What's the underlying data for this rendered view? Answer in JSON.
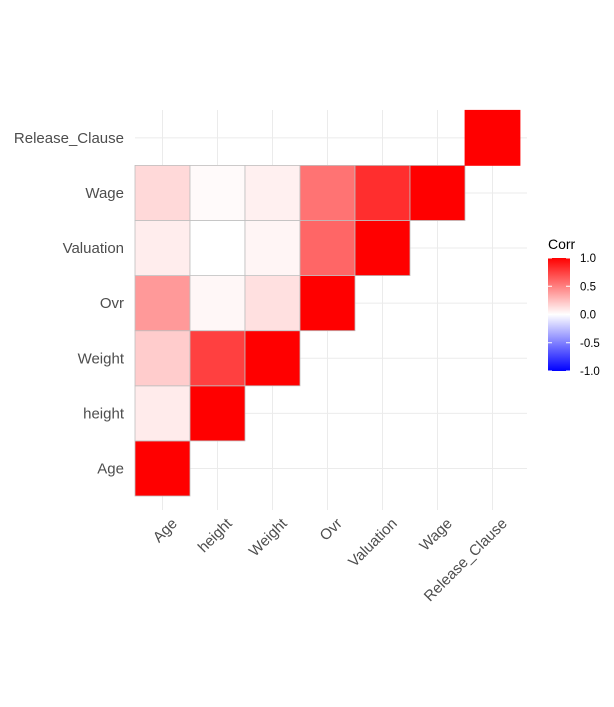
{
  "chart_data": {
    "type": "heatmap",
    "title": "",
    "xlabel": "",
    "ylabel": "",
    "variables": [
      "Age",
      "height",
      "Weight",
      "Ovr",
      "Valuation",
      "Wage",
      "Release_Clause"
    ],
    "x_labels": [
      "Age",
      "height",
      "Weight",
      "Ovr",
      "Valuation",
      "Wage",
      "Release_Clause"
    ],
    "y_labels": [
      "Age",
      "height",
      "Weight",
      "Ovr",
      "Valuation",
      "Wage",
      "Release_Clause"
    ],
    "triangle": "lower (including diagonal); Release_Clause shows only its diagonal",
    "cells": [
      {
        "x": "Age",
        "y": "Age",
        "value": 1.0
      },
      {
        "x": "Age",
        "y": "height",
        "value": 0.08
      },
      {
        "x": "Age",
        "y": "Weight",
        "value": 0.2
      },
      {
        "x": "Age",
        "y": "Ovr",
        "value": 0.4
      },
      {
        "x": "Age",
        "y": "Valuation",
        "value": 0.07
      },
      {
        "x": "Age",
        "y": "Wage",
        "value": 0.15
      },
      {
        "x": "height",
        "y": "height",
        "value": 1.0
      },
      {
        "x": "height",
        "y": "Weight",
        "value": 0.75
      },
      {
        "x": "height",
        "y": "Ovr",
        "value": 0.03
      },
      {
        "x": "height",
        "y": "Valuation",
        "value": 0.0
      },
      {
        "x": "height",
        "y": "Wage",
        "value": 0.02
      },
      {
        "x": "Weight",
        "y": "Weight",
        "value": 1.0
      },
      {
        "x": "Weight",
        "y": "Ovr",
        "value": 0.12
      },
      {
        "x": "Weight",
        "y": "Valuation",
        "value": 0.04
      },
      {
        "x": "Weight",
        "y": "Wage",
        "value": 0.06
      },
      {
        "x": "Ovr",
        "y": "Ovr",
        "value": 1.0
      },
      {
        "x": "Ovr",
        "y": "Valuation",
        "value": 0.6
      },
      {
        "x": "Ovr",
        "y": "Wage",
        "value": 0.55
      },
      {
        "x": "Valuation",
        "y": "Valuation",
        "value": 1.0
      },
      {
        "x": "Valuation",
        "y": "Wage",
        "value": 0.82
      },
      {
        "x": "Wage",
        "y": "Wage",
        "value": 1.0
      },
      {
        "x": "Release_Clause",
        "y": "Release_Clause",
        "value": 1.0
      }
    ],
    "legend": {
      "title": "Corr",
      "ticks": [
        "1.0",
        "0.5",
        "0.0",
        "-0.5",
        "-1.0"
      ],
      "tick_values": [
        1.0,
        0.5,
        0.0,
        -0.5,
        -1.0
      ],
      "range": [
        -1.0,
        1.0
      ],
      "colors": {
        "low": "#0000ff",
        "mid": "#ffffff",
        "high": "#ff0000"
      },
      "placement": "right"
    },
    "grid": true,
    "colors": {
      "grid": "#ebebeb",
      "tile_border": "#bfbfbf",
      "axis_text": "#4d4d4d"
    }
  }
}
